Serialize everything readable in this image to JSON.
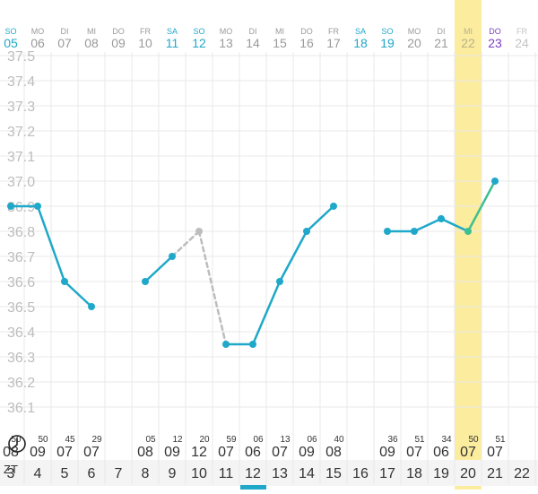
{
  "days": [
    {
      "dow": "SO",
      "date": "05",
      "type": "sun"
    },
    {
      "dow": "MO",
      "date": "06",
      "type": "normal"
    },
    {
      "dow": "DI",
      "date": "07",
      "type": "normal"
    },
    {
      "dow": "MI",
      "date": "08",
      "type": "normal"
    },
    {
      "dow": "DO",
      "date": "09",
      "type": "normal"
    },
    {
      "dow": "FR",
      "date": "10",
      "type": "normal"
    },
    {
      "dow": "SA",
      "date": "11",
      "type": "sat"
    },
    {
      "dow": "SO",
      "date": "12",
      "type": "sun"
    },
    {
      "dow": "MO",
      "date": "13",
      "type": "normal"
    },
    {
      "dow": "DI",
      "date": "14",
      "type": "normal"
    },
    {
      "dow": "MI",
      "date": "15",
      "type": "normal"
    },
    {
      "dow": "DO",
      "date": "16",
      "type": "normal"
    },
    {
      "dow": "FR",
      "date": "17",
      "type": "normal"
    },
    {
      "dow": "SA",
      "date": "18",
      "type": "sat"
    },
    {
      "dow": "SO",
      "date": "19",
      "type": "sun"
    },
    {
      "dow": "MO",
      "date": "20",
      "type": "normal"
    },
    {
      "dow": "DI",
      "date": "21",
      "type": "normal"
    },
    {
      "dow": "MI",
      "date": "22",
      "type": "selected"
    },
    {
      "dow": "DO",
      "date": "23",
      "type": "today"
    },
    {
      "dow": "FR",
      "date": "24",
      "type": "future"
    }
  ],
  "colors": {
    "accent": "#1fa8c9",
    "weekday": "#9a9a9a",
    "today": "#7b3fbf",
    "future": "#c4c4c4",
    "line": "#1fa8c9",
    "highlight_line": "#3fbf8f",
    "dashed": "#bdbdbd",
    "selection": "#fbec9e",
    "grid": "#e8e8e8",
    "ytick": "#bdbdbd",
    "cycle_bar_bg": "#f4f4f4",
    "cycle_text": "#333333",
    "time_text": "#333333"
  },
  "chart_data": {
    "type": "line",
    "y_ticks": [
      "37.5",
      "37.4",
      "37.3",
      "37.2",
      "37.1",
      "37.0",
      "36.9",
      "36.8",
      "36.7",
      "36.6",
      "36.5",
      "36.4",
      "36.3",
      "36.2",
      "36.1"
    ],
    "ylim": [
      36.0,
      37.5
    ],
    "selected_index": 17,
    "points": [
      {
        "i": 0,
        "y": 36.9
      },
      {
        "i": 1,
        "y": 36.9
      },
      {
        "i": 2,
        "y": 36.6
      },
      {
        "i": 3,
        "y": 36.5
      },
      {
        "i": 5,
        "y": 36.6
      },
      {
        "i": 6,
        "y": 36.7
      },
      {
        "i": 7,
        "y": 36.8,
        "excluded": true
      },
      {
        "i": 8,
        "y": 36.35
      },
      {
        "i": 9,
        "y": 36.35
      },
      {
        "i": 10,
        "y": 36.6
      },
      {
        "i": 11,
        "y": 36.8
      },
      {
        "i": 12,
        "y": 36.9
      },
      {
        "i": 14,
        "y": 36.8
      },
      {
        "i": 15,
        "y": 36.8
      },
      {
        "i": 16,
        "y": 36.85
      },
      {
        "i": 17,
        "y": 36.8
      },
      {
        "i": 18,
        "y": 37.0
      }
    ],
    "segments": [
      {
        "from": 0,
        "to": 1,
        "style": "solid"
      },
      {
        "from": 1,
        "to": 2,
        "style": "solid"
      },
      {
        "from": 2,
        "to": 3,
        "style": "solid"
      },
      {
        "from": 5,
        "to": 6,
        "style": "solid"
      },
      {
        "from": 6,
        "to": 7,
        "style": "dashed"
      },
      {
        "from": 7,
        "to": 8,
        "style": "dashed"
      },
      {
        "from": 8,
        "to": 9,
        "style": "solid"
      },
      {
        "from": 9,
        "to": 10,
        "style": "solid"
      },
      {
        "from": 10,
        "to": 11,
        "style": "solid"
      },
      {
        "from": 11,
        "to": 12,
        "style": "solid"
      },
      {
        "from": 14,
        "to": 15,
        "style": "solid"
      },
      {
        "from": 15,
        "to": 16,
        "style": "solid"
      },
      {
        "from": 16,
        "to": 17,
        "style": "solid"
      },
      {
        "from": 17,
        "to": 18,
        "style": "highlight"
      }
    ]
  },
  "times": [
    {
      "i": 0,
      "hour": "08",
      "min": "50"
    },
    {
      "i": 1,
      "hour": "09",
      "min": "50"
    },
    {
      "i": 2,
      "hour": "07",
      "min": "45"
    },
    {
      "i": 3,
      "hour": "07",
      "min": "29"
    },
    {
      "i": 5,
      "hour": "08",
      "min": "05"
    },
    {
      "i": 6,
      "hour": "09",
      "min": "12"
    },
    {
      "i": 7,
      "hour": "12",
      "min": "20"
    },
    {
      "i": 8,
      "hour": "07",
      "min": "59"
    },
    {
      "i": 9,
      "hour": "06",
      "min": "06"
    },
    {
      "i": 10,
      "hour": "07",
      "min": "13"
    },
    {
      "i": 11,
      "hour": "09",
      "min": "06"
    },
    {
      "i": 12,
      "hour": "08",
      "min": "40"
    },
    {
      "i": 14,
      "hour": "09",
      "min": "36"
    },
    {
      "i": 15,
      "hour": "07",
      "min": "51"
    },
    {
      "i": 16,
      "hour": "06",
      "min": "34"
    },
    {
      "i": 17,
      "hour": "07",
      "min": "50"
    },
    {
      "i": 18,
      "hour": "07",
      "min": "51"
    }
  ],
  "cycle_label": "ZT",
  "cycle_days": [
    "3",
    "4",
    "5",
    "6",
    "7",
    "8",
    "9",
    "10",
    "11",
    "12",
    "13",
    "14",
    "15",
    "16",
    "17",
    "18",
    "19",
    "20",
    "21",
    "22"
  ]
}
